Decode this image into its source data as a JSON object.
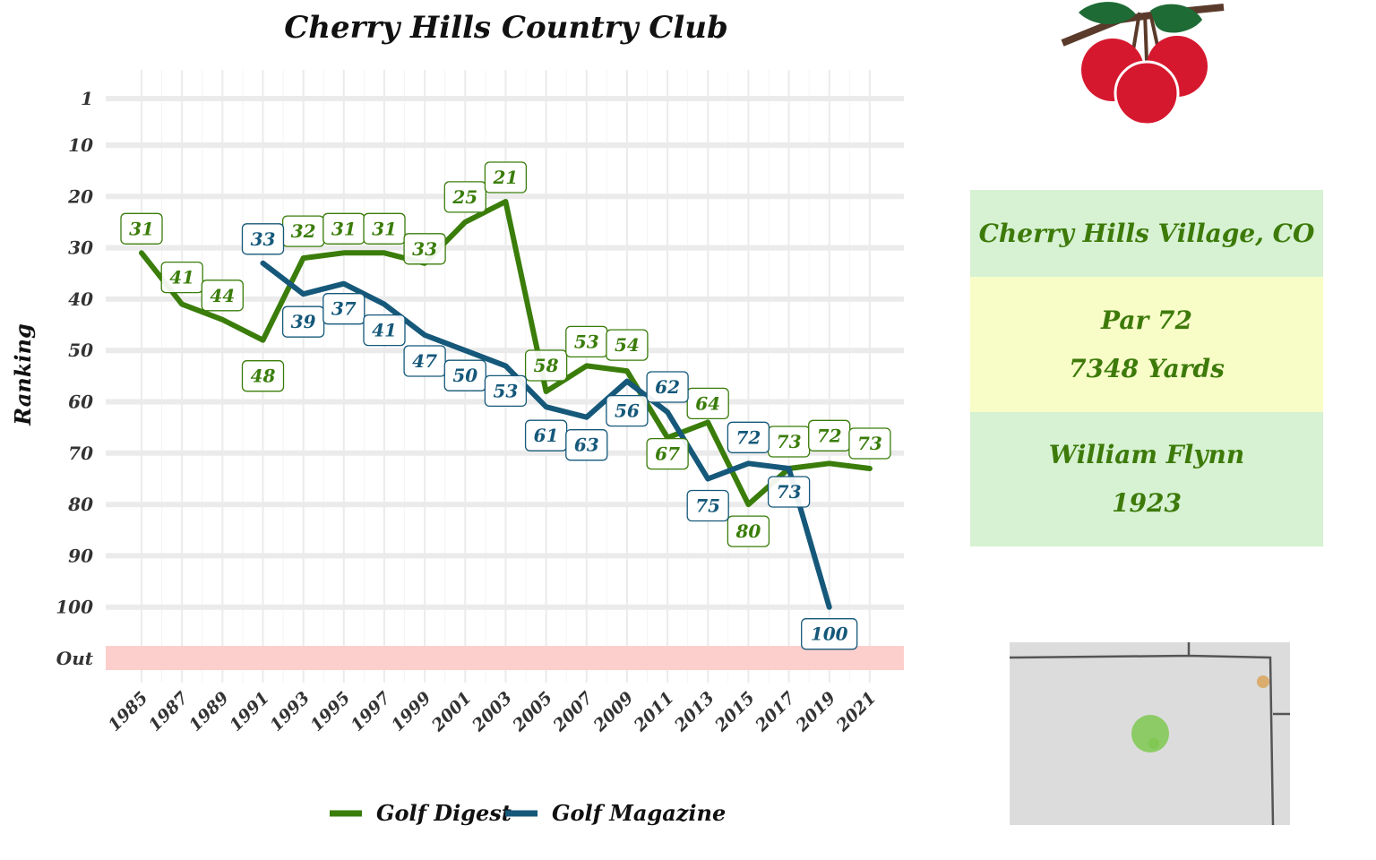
{
  "chart_data": {
    "type": "line",
    "title": "Cherry Hills Country Club",
    "ylabel": "Ranking",
    "xlabel": "",
    "x_ticks": [
      "1985",
      "1987",
      "1989",
      "1991",
      "1993",
      "1995",
      "1997",
      "1999",
      "2001",
      "2003",
      "2005",
      "2007",
      "2009",
      "2011",
      "2013",
      "2015",
      "2017",
      "2019",
      "2021"
    ],
    "y_ticks": [
      "1",
      "10",
      "20",
      "30",
      "40",
      "50",
      "60",
      "70",
      "80",
      "90",
      "100",
      "Out"
    ],
    "y_reversed": true,
    "ylim": [
      1,
      100
    ],
    "xlim": [
      1985,
      2021
    ],
    "grid": true,
    "legend_position": "bottom",
    "series": [
      {
        "name": "Golf Digest",
        "color": "#3a7d0a",
        "points": [
          {
            "x": 1985,
            "y": 31
          },
          {
            "x": 1987,
            "y": 41
          },
          {
            "x": 1989,
            "y": 44
          },
          {
            "x": 1991,
            "y": 48
          },
          {
            "x": 1993,
            "y": 32
          },
          {
            "x": 1995,
            "y": 31
          },
          {
            "x": 1997,
            "y": 31
          },
          {
            "x": 1999,
            "y": 33
          },
          {
            "x": 2001,
            "y": 25
          },
          {
            "x": 2003,
            "y": 21
          },
          {
            "x": 2005,
            "y": 58
          },
          {
            "x": 2007,
            "y": 53
          },
          {
            "x": 2009,
            "y": 54
          },
          {
            "x": 2011,
            "y": 67
          },
          {
            "x": 2013,
            "y": 64
          },
          {
            "x": 2015,
            "y": 80
          },
          {
            "x": 2017,
            "y": 73
          },
          {
            "x": 2019,
            "y": 72
          },
          {
            "x": 2021,
            "y": 73
          }
        ]
      },
      {
        "name": "Golf Magazine",
        "color": "#15587a",
        "points": [
          {
            "x": 1991,
            "y": 33
          },
          {
            "x": 1993,
            "y": 39
          },
          {
            "x": 1995,
            "y": 37
          },
          {
            "x": 1997,
            "y": 41
          },
          {
            "x": 1999,
            "y": 47
          },
          {
            "x": 2001,
            "y": 50
          },
          {
            "x": 2003,
            "y": 53
          },
          {
            "x": 2005,
            "y": 61
          },
          {
            "x": 2007,
            "y": 63
          },
          {
            "x": 2009,
            "y": 56
          },
          {
            "x": 2011,
            "y": 62
          },
          {
            "x": 2013,
            "y": 75
          },
          {
            "x": 2015,
            "y": 72
          },
          {
            "x": 2017,
            "y": 73
          },
          {
            "x": 2019,
            "y": 100
          }
        ]
      }
    ]
  },
  "info": {
    "location": "Cherry Hills Village, CO",
    "par": "Par 72",
    "yards": "7348 Yards",
    "architect": "William Flynn",
    "year": "1923"
  },
  "colors": {
    "out_band": "#fccfcc",
    "logo_red": "#d6182e",
    "logo_leaf": "#1e6b35",
    "map_bg": "#dcdcdc",
    "map_marker_green": "#7ec850",
    "map_marker_orange": "#d9a45a"
  }
}
